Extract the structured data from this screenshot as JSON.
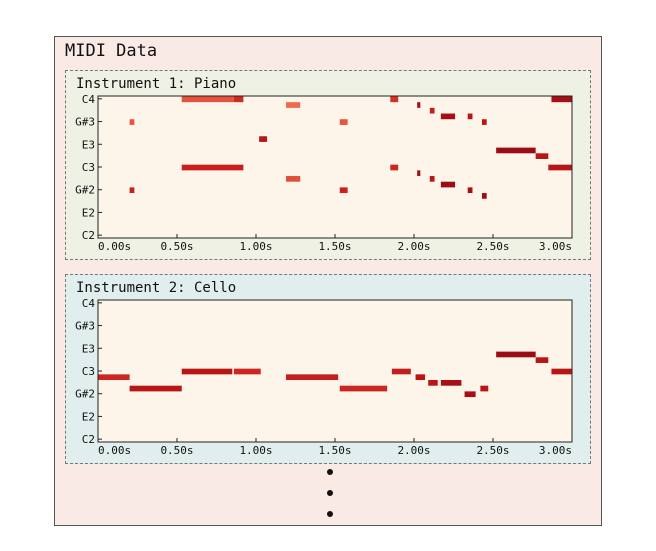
{
  "title": "MIDI Data",
  "x_ticks": [
    "0.00s",
    "0.50s",
    "1.00s",
    "1.50s",
    "2.00s",
    "2.50s",
    "3.00s"
  ],
  "y_ticks": [
    "C4",
    "G#3",
    "E3",
    "C3",
    "G#2",
    "E2",
    "C2"
  ],
  "colors": {
    "plot_bg": "#fdf4ea",
    "outer_bg": "#faeae6",
    "panel1_bg": "#eef1e4",
    "panel2_bg": "#e1eeee"
  },
  "instruments": [
    {
      "label": "Instrument 1: Piano",
      "notes": [
        {
          "pitch": "G#3",
          "start": 0.2,
          "end": 0.23,
          "color": "#e8553c"
        },
        {
          "pitch": "G#2",
          "start": 0.2,
          "end": 0.23,
          "color": "#c4201c"
        },
        {
          "pitch": "C4",
          "start": 0.53,
          "end": 0.86,
          "color": "#e5533f"
        },
        {
          "pitch": "C4",
          "start": 0.86,
          "end": 0.92,
          "color": "#cd2a22"
        },
        {
          "pitch": "C3",
          "start": 0.53,
          "end": 0.92,
          "color": "#c81e1c"
        },
        {
          "pitch": "F3",
          "start": 1.02,
          "end": 1.07,
          "color": "#b81515"
        },
        {
          "pitch": "B3",
          "start": 1.19,
          "end": 1.28,
          "color": "#ef6a4a"
        },
        {
          "pitch": "A#2",
          "start": 1.19,
          "end": 1.28,
          "color": "#e05038"
        },
        {
          "pitch": "G#3",
          "start": 1.53,
          "end": 1.58,
          "color": "#e8553c"
        },
        {
          "pitch": "G#2",
          "start": 1.53,
          "end": 1.58,
          "color": "#c8221c"
        },
        {
          "pitch": "C4",
          "start": 1.85,
          "end": 1.9,
          "color": "#d62f24"
        },
        {
          "pitch": "C3",
          "start": 1.85,
          "end": 1.9,
          "color": "#cc2620"
        },
        {
          "pitch": "B3",
          "start": 2.02,
          "end": 2.04,
          "color": "#a50f15"
        },
        {
          "pitch": "B2",
          "start": 2.02,
          "end": 2.04,
          "color": "#a50f15"
        },
        {
          "pitch": "A#3",
          "start": 2.1,
          "end": 2.13,
          "color": "#c41f1f"
        },
        {
          "pitch": "A#2",
          "start": 2.1,
          "end": 2.13,
          "color": "#b31717"
        },
        {
          "pitch": "A3",
          "start": 2.17,
          "end": 2.26,
          "color": "#a50f15"
        },
        {
          "pitch": "A2",
          "start": 2.17,
          "end": 2.26,
          "color": "#9b0d14"
        },
        {
          "pitch": "A3",
          "start": 2.34,
          "end": 2.37,
          "color": "#b81515"
        },
        {
          "pitch": "G#2",
          "start": 2.34,
          "end": 2.37,
          "color": "#a50f15"
        },
        {
          "pitch": "G#3",
          "start": 2.43,
          "end": 2.46,
          "color": "#b81515"
        },
        {
          "pitch": "G2",
          "start": 2.43,
          "end": 2.46,
          "color": "#9b0d14"
        },
        {
          "pitch": "D#3",
          "start": 2.52,
          "end": 2.77,
          "color": "#9b0d14"
        },
        {
          "pitch": "D3",
          "start": 2.77,
          "end": 2.85,
          "color": "#b81515"
        },
        {
          "pitch": "C3",
          "start": 2.85,
          "end": 3.02,
          "color": "#b81515"
        },
        {
          "pitch": "C4",
          "start": 2.87,
          "end": 3.02,
          "color": "#a50f15"
        }
      ]
    },
    {
      "label": "Instrument 2: Cello",
      "notes": [
        {
          "pitch": "B2",
          "start": -0.02,
          "end": 0.2,
          "color": "#cc2620"
        },
        {
          "pitch": "A2",
          "start": 0.2,
          "end": 0.53,
          "color": "#b81515"
        },
        {
          "pitch": "C3",
          "start": 0.53,
          "end": 0.85,
          "color": "#b81515"
        },
        {
          "pitch": "C3",
          "start": 0.86,
          "end": 1.03,
          "color": "#cc2620"
        },
        {
          "pitch": "B2",
          "start": 1.19,
          "end": 1.52,
          "color": "#c41f1f"
        },
        {
          "pitch": "A2",
          "start": 1.53,
          "end": 1.83,
          "color": "#cc2620"
        },
        {
          "pitch": "C3",
          "start": 1.86,
          "end": 1.98,
          "color": "#c41f1f"
        },
        {
          "pitch": "B2",
          "start": 2.01,
          "end": 2.07,
          "color": "#b81515"
        },
        {
          "pitch": "A#2",
          "start": 2.09,
          "end": 2.15,
          "color": "#b81515"
        },
        {
          "pitch": "A#2",
          "start": 2.17,
          "end": 2.3,
          "color": "#a50f15"
        },
        {
          "pitch": "G#2",
          "start": 2.32,
          "end": 2.39,
          "color": "#a50f15"
        },
        {
          "pitch": "A2",
          "start": 2.42,
          "end": 2.47,
          "color": "#b81515"
        },
        {
          "pitch": "D#3",
          "start": 2.52,
          "end": 2.77,
          "color": "#9b0d14"
        },
        {
          "pitch": "D3",
          "start": 2.77,
          "end": 2.85,
          "color": "#b81515"
        },
        {
          "pitch": "C3",
          "start": 2.87,
          "end": 3.02,
          "color": "#b81515"
        }
      ]
    }
  ]
}
